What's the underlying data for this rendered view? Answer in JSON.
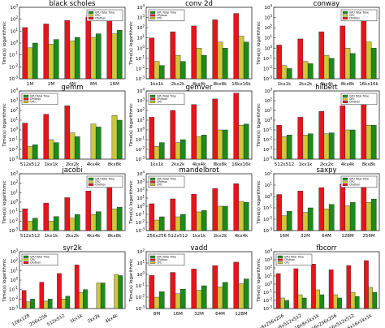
{
  "colors": {
    "gpu": "#1a8c1a",
    "cpython": "#e8141b",
    "cpu": "#c9c93a",
    "edge": "#222222",
    "background": "#ffffff"
  },
  "chart_data": [
    {
      "type": "bar",
      "title": "black scholes",
      "log_y": true,
      "ylim": [
        0.001,
        1000
      ],
      "yticks": [
        0.001,
        0.01,
        0.1,
        1,
        10,
        100,
        1000
      ],
      "ylabel": "Time(s) logarithmic",
      "categories": [
        "1M",
        "2M",
        "4M",
        "8M",
        "16M"
      ],
      "legend": {
        "entries": [
          "GPU Total Time",
          "CPU",
          "CPython"
        ],
        "position": "top-right"
      },
      "series": [
        {
          "name": "CPython",
          "values": [
            20,
            40,
            80,
            150,
            300
          ]
        },
        {
          "name": "CPU",
          "values": [
            0.4,
            0.8,
            1.5,
            3,
            6
          ]
        },
        {
          "name": "GPU Total Time",
          "values": [
            1,
            2,
            3,
            6,
            12
          ]
        }
      ]
    },
    {
      "type": "bar",
      "title": "conv 2d",
      "log_y": true,
      "ylim": [
        0.001,
        10000
      ],
      "yticks": [
        0.001,
        0.01,
        0.1,
        1,
        10,
        100,
        1000,
        10000
      ],
      "ylabel": "Time(s) logarithmic",
      "categories": [
        "1kx1k",
        "2kx2k",
        "4kx4k",
        "8kx8k",
        "16kx16k"
      ],
      "legend": {
        "entries": [
          "GPU Total Time",
          "CPython",
          "CPU"
        ],
        "position": "top-left"
      },
      "series": [
        {
          "name": "CPython",
          "values": [
            10,
            40,
            150,
            600,
            2500
          ]
        },
        {
          "name": "CPU",
          "values": [
            0.05,
            0.2,
            1,
            4,
            15
          ]
        },
        {
          "name": "GPU Total Time",
          "values": [
            0.02,
            0.05,
            0.2,
            1,
            4
          ]
        }
      ]
    },
    {
      "type": "bar",
      "title": "conway",
      "log_y": true,
      "ylim": [
        0.001,
        10000
      ],
      "yticks": [
        0.001,
        0.01,
        0.1,
        1,
        10,
        100,
        1000,
        10000
      ],
      "ylabel": "Time(s) logarithmic",
      "categories": [
        "1kx1k",
        "2kx2k",
        "4kx4k",
        "8kx8k",
        "16kx16k"
      ],
      "legend": {
        "entries": [
          "GPU Total Time",
          "CPU",
          "CPython"
        ],
        "position": "top-right"
      },
      "series": [
        {
          "name": "CPython",
          "values": [
            2,
            8,
            40,
            150,
            600
          ]
        },
        {
          "name": "CPU",
          "values": [
            0.02,
            0.05,
            0.2,
            1,
            4
          ]
        },
        {
          "name": "GPU Total Time",
          "values": [
            0.01,
            0.03,
            0.1,
            0.3,
            1
          ]
        }
      ]
    },
    {
      "type": "bar",
      "title": "gemm",
      "log_y": true,
      "ylim": [
        0.001,
        10000
      ],
      "yticks": [
        0.001,
        0.01,
        0.1,
        1,
        10,
        100,
        1000,
        10000
      ],
      "ylabel": "Time(s) logarithmic",
      "categories": [
        "512x512",
        "1kx1k",
        "2kx2k",
        "4kx4k",
        "8kx8k"
      ],
      "legend": {
        "entries": [
          "GPU Total Time",
          "CPython",
          "CPU"
        ],
        "position": "top-left"
      },
      "series": [
        {
          "name": "CPython",
          "values": [
            5,
            40,
            300,
            null,
            null
          ]
        },
        {
          "name": "CPU",
          "values": [
            0.02,
            0.1,
            0.5,
            4,
            30
          ]
        },
        {
          "name": "GPU Total Time",
          "values": [
            0.03,
            0.05,
            0.2,
            2,
            10
          ]
        }
      ]
    },
    {
      "type": "bar",
      "title": "gemver",
      "log_y": true,
      "ylim": [
        0.001,
        10000
      ],
      "yticks": [
        0.001,
        0.01,
        0.1,
        1,
        10,
        100,
        1000,
        10000
      ],
      "ylabel": "Time(s) logarithmic",
      "categories": [
        "1kx1k",
        "2kx2k",
        "4kx4k",
        "8kx8k",
        "16kx16k"
      ],
      "legend": {
        "entries": [
          "GPU Total Time",
          "CPython",
          "CPU"
        ],
        "position": "top-left"
      },
      "series": [
        {
          "name": "CPython",
          "values": [
            20,
            100,
            400,
            1500,
            6000
          ]
        },
        {
          "name": "CPU",
          "values": [
            0.02,
            0.05,
            0.2,
            1,
            3
          ]
        },
        {
          "name": "GPU Total Time",
          "values": [
            0.05,
            0.1,
            0.3,
            1,
            4
          ]
        }
      ]
    },
    {
      "type": "bar",
      "title": "hilbert",
      "log_y": true,
      "ylim": [
        0.0001,
        1000
      ],
      "yticks": [
        0.0001,
        0.001,
        0.01,
        0.1,
        1,
        10,
        100,
        1000
      ],
      "ylabel": "Time(s) logarithmic",
      "categories": [
        "512x512",
        "1kx1k",
        "2kx2k",
        "4kx4k",
        "8kx8k"
      ],
      "legend": {
        "entries": [
          "GPU Total Time",
          "CPU",
          "CPython"
        ],
        "position": "top-right"
      },
      "series": [
        {
          "name": "CPython",
          "values": [
            0.3,
            2,
            8,
            30,
            150
          ]
        },
        {
          "name": "CPU",
          "values": [
            0.02,
            0.03,
            0.04,
            0.1,
            0.3
          ]
        },
        {
          "name": "GPU Total Time",
          "values": [
            0.03,
            0.04,
            0.05,
            0.1,
            0.3
          ]
        }
      ]
    },
    {
      "type": "bar",
      "title": "jacobi",
      "log_y": true,
      "ylim": [
        0.001,
        1000
      ],
      "yticks": [
        0.001,
        0.01,
        0.1,
        1,
        10,
        100,
        1000
      ],
      "ylabel": "Time(s) logarithmic",
      "categories": [
        "512x512",
        "1kx1k",
        "2kx2k",
        "4kx4k",
        "8kx8k"
      ],
      "legend": {
        "entries": [
          "GPU Total Time",
          "CPU",
          "CPython"
        ],
        "position": "top-right"
      },
      "series": [
        {
          "name": "CPython",
          "values": [
            0.2,
            0.8,
            3,
            15,
            70
          ]
        },
        {
          "name": "CPU",
          "values": [
            0.01,
            0.01,
            0.02,
            0.05,
            0.2
          ]
        },
        {
          "name": "GPU Total Time",
          "values": [
            0.02,
            0.03,
            0.05,
            0.1,
            0.3
          ]
        }
      ]
    },
    {
      "type": "bar",
      "title": "mandelbrot",
      "log_y": true,
      "ylim": [
        0.001,
        10000
      ],
      "yticks": [
        0.001,
        0.01,
        0.1,
        1,
        10,
        100,
        1000,
        10000
      ],
      "ylabel": "Time(s) logarithmic",
      "categories": [
        "256x256",
        "512x512",
        "1kx1k",
        "2kx2k",
        "4kx4k"
      ],
      "legend": {
        "entries": [
          "GPU Total Time",
          "CPython",
          "CPU"
        ],
        "position": "top-left"
      },
      "series": [
        {
          "name": "CPython",
          "values": [
            2,
            8,
            30,
            150,
            600
          ]
        },
        {
          "name": "CPU",
          "values": [
            0.02,
            0.05,
            0.2,
            1,
            4
          ]
        },
        {
          "name": "GPU Total Time",
          "values": [
            0.05,
            0.1,
            0.3,
            1,
            3
          ]
        }
      ]
    },
    {
      "type": "bar",
      "title": "saxpy",
      "log_y": true,
      "ylim": [
        0.001,
        100
      ],
      "yticks": [
        0.001,
        0.01,
        0.1,
        1,
        10,
        100
      ],
      "ylabel": "Time(s) logarithmic",
      "categories": [
        "16M",
        "32M",
        "64M",
        "128M",
        "256M"
      ],
      "legend": {
        "entries": [
          "GPU Total Time",
          "CPU",
          "CPython"
        ],
        "position": "top-right"
      },
      "series": [
        {
          "name": "CPython",
          "values": [
            1.5,
            3,
            6,
            12,
            25
          ]
        },
        {
          "name": "CPU",
          "values": [
            0.02,
            0.04,
            0.08,
            0.15,
            0.3
          ]
        },
        {
          "name": "GPU Total Time",
          "values": [
            0.05,
            0.1,
            0.2,
            0.3,
            0.6
          ]
        }
      ]
    },
    {
      "type": "bar",
      "title": "syr2k",
      "log_y": true,
      "ylim": [
        0.001,
        1000
      ],
      "yticks": [
        0.001,
        0.01,
        0.1,
        1,
        10,
        100,
        1000
      ],
      "ylabel": "Time(s) logarithmic",
      "categories": [
        "128x128",
        "256x256",
        "512x512",
        "1kx1k",
        "2kx2k",
        "4kx4k"
      ],
      "legend": {
        "entries": [
          "GPU Total Time",
          "CPU",
          "CPython"
        ],
        "position": "top-left"
      },
      "series": [
        {
          "name": "CPython",
          "values": [
            0.08,
            0.6,
            5,
            40,
            null,
            null
          ]
        },
        {
          "name": "CPU",
          "values": [
            0.005,
            0.006,
            0.01,
            0.05,
            0.5,
            4
          ]
        },
        {
          "name": "GPU Total Time",
          "values": [
            0.01,
            0.01,
            0.02,
            0.1,
            0.5,
            3
          ]
        }
      ]
    },
    {
      "type": "bar",
      "title": "vadd",
      "log_y": true,
      "ylim": [
        0.001,
        100
      ],
      "yticks": [
        0.001,
        0.01,
        0.1,
        1,
        10,
        100
      ],
      "ylabel": "Time(s) logarithmic",
      "categories": [
        "8M",
        "16M",
        "32M",
        "64M",
        "128M"
      ],
      "legend": {
        "entries": [
          "GPU Total Time",
          "CPython",
          "CPU"
        ],
        "position": "top-left"
      },
      "series": [
        {
          "name": "CPython",
          "values": [
            0.8,
            1.5,
            3,
            6,
            12
          ]
        },
        {
          "name": "CPU",
          "values": [
            0.01,
            0.02,
            0.04,
            0.08,
            0.15
          ]
        },
        {
          "name": "GPU Total Time",
          "values": [
            0.03,
            0.05,
            0.1,
            0.2,
            0.4
          ]
        }
      ]
    },
    {
      "type": "bar",
      "title": "fbcorr",
      "log_y": true,
      "ylim": [
        0.001,
        10000
      ],
      "yticks": [
        0.001,
        0.01,
        0.1,
        1,
        10,
        100,
        1000,
        10000
      ],
      "ylabel": "Time(s) logarithmic",
      "categories": [
        "16x8x256x256",
        "16x8x512x512",
        "16x8x1kx1k",
        "16x16x256x256",
        "16x16x512x512",
        "16x16x1kx1k"
      ],
      "legend": {
        "entries": [
          "GPU Total Time",
          "CPython",
          "CPU"
        ],
        "position": "top-left"
      },
      "series": [
        {
          "name": "CPython",
          "values": [
            20,
            80,
            300,
            60,
            200,
            800
          ]
        },
        {
          "name": "CPU",
          "values": [
            0.02,
            0.05,
            0.2,
            0.05,
            0.1,
            0.4
          ]
        },
        {
          "name": "GPU Total Time",
          "values": [
            0.01,
            0.02,
            0.05,
            0.02,
            0.03,
            0.1
          ]
        }
      ]
    }
  ]
}
